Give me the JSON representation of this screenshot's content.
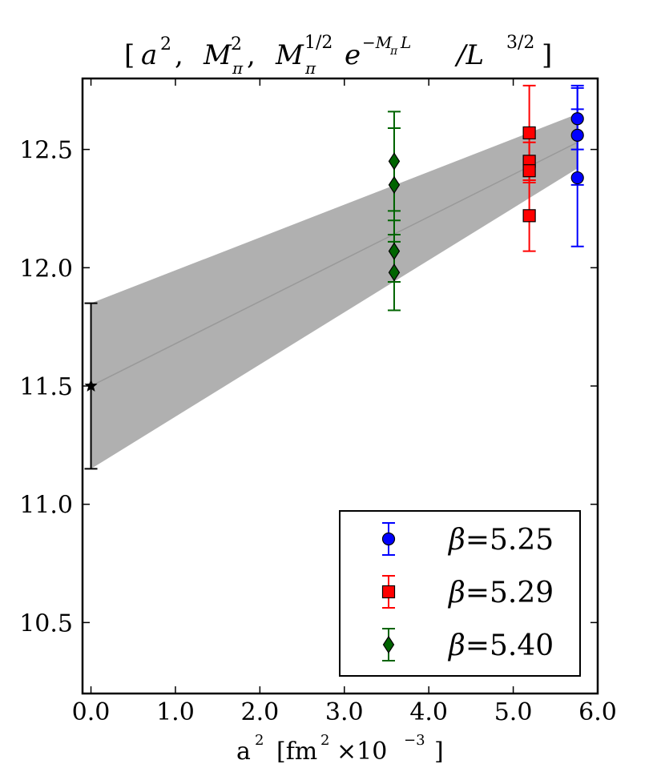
{
  "chart_data": {
    "type": "scatter",
    "title": "[a² , Mπ² , Mπ¹ᐟ² e⁻ᴹπᴸ /L³ᐟ² ]",
    "title_parts": {
      "open": "[",
      "a": "a",
      "sq": "2",
      "sep": " , ",
      "M": "M",
      "pi": "π",
      "half": "1/2",
      "e": "e",
      "exp": "−M",
      "expL": "L",
      "slash": "/L",
      "threehalf": "3/2",
      "close": "]"
    },
    "xlabel": "a²  [fm²  ×10⁻³ ]",
    "xlabel_parts": {
      "a": "a",
      "sq": "2",
      "bracket_open": "[fm",
      "times": "×10",
      "exp": "−3",
      "bracket_close": "]"
    },
    "ylabel": "",
    "xlim": [
      -0.1,
      6.0
    ],
    "ylim": [
      10.2,
      12.8
    ],
    "x_ticks": [
      0.0,
      1.0,
      2.0,
      3.0,
      4.0,
      5.0,
      6.0
    ],
    "x_tick_labels": [
      "0.0",
      "1.0",
      "2.0",
      "3.0",
      "4.0",
      "5.0",
      "6.0"
    ],
    "y_ticks": [
      10.5,
      11.0,
      11.5,
      12.0,
      12.5
    ],
    "y_tick_labels": [
      "10.5",
      "11.0",
      "11.5",
      "12.0",
      "12.5"
    ],
    "grid": false,
    "legend_position": "lower-right",
    "fit": {
      "x": [
        0.0,
        5.76
      ],
      "y": [
        11.5,
        12.53
      ],
      "band_lower": [
        11.15,
        12.42
      ],
      "band_upper": [
        11.85,
        12.65
      ],
      "color": "#b0b0b0"
    },
    "extrapolated_point": {
      "x": 0.0,
      "y": 11.5,
      "yerr": 0.35,
      "marker": "star",
      "color": "#000000"
    },
    "series": [
      {
        "name": "β=5.25",
        "legend_beta": "β",
        "legend_value": "=5.25",
        "color": "#0000ff",
        "marker": "circle",
        "points": [
          {
            "x": 5.76,
            "y": 12.63,
            "yerr": 0.13
          },
          {
            "x": 5.76,
            "y": 12.56,
            "yerr": 0.21
          },
          {
            "x": 5.76,
            "y": 12.38,
            "yerr": 0.29
          }
        ]
      },
      {
        "name": "β=5.29",
        "legend_beta": "β",
        "legend_value": "=5.29",
        "color": "#ff0000",
        "marker": "square",
        "points": [
          {
            "x": 5.19,
            "y": 12.57,
            "yerr": 0.2
          },
          {
            "x": 5.19,
            "y": 12.45,
            "yerr": 0.08
          },
          {
            "x": 5.19,
            "y": 12.41,
            "yerr": 0.05
          },
          {
            "x": 5.19,
            "y": 12.22,
            "yerr": 0.15
          }
        ]
      },
      {
        "name": "β=5.40",
        "legend_beta": "β",
        "legend_value": "=5.40",
        "color": "#006400",
        "marker": "diamond",
        "points": [
          {
            "x": 3.59,
            "y": 12.45,
            "yerr": 0.21
          },
          {
            "x": 3.59,
            "y": 12.35,
            "yerr": 0.24
          },
          {
            "x": 3.59,
            "y": 12.07,
            "yerr": 0.13
          },
          {
            "x": 3.59,
            "y": 11.98,
            "yerr": 0.16
          }
        ]
      }
    ]
  }
}
